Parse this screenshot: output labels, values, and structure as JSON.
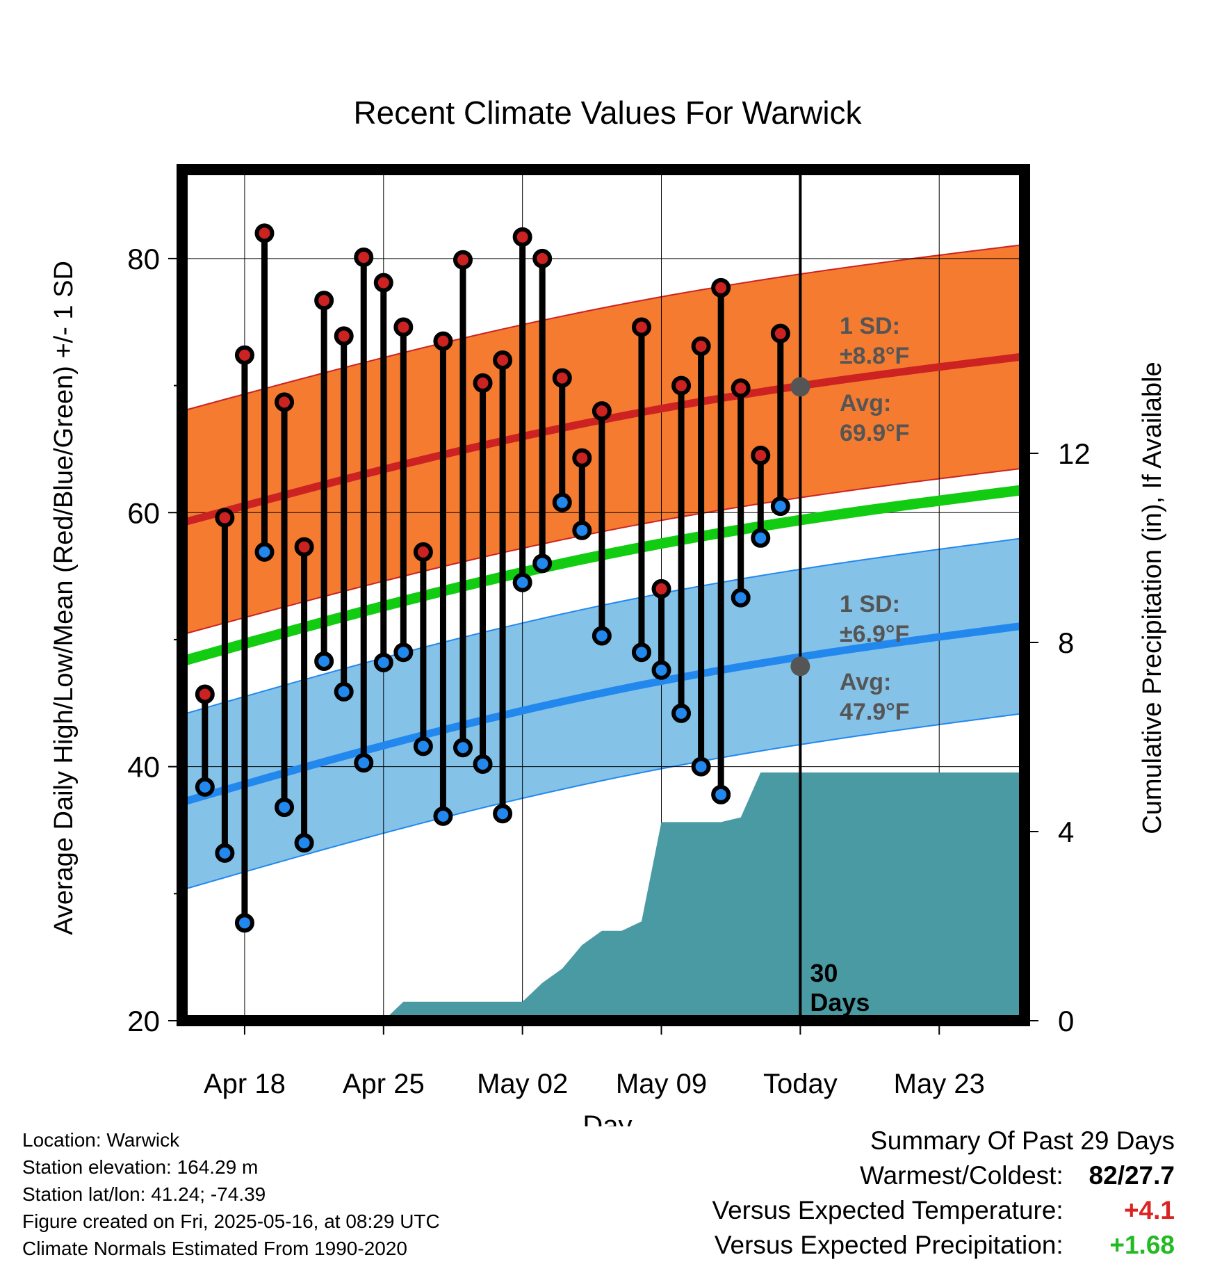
{
  "chart_data": {
    "type": "line",
    "title": "Recent Climate Values For Warwick",
    "xlabel": "Day",
    "ylabel": "Average Daily High/Low/Mean (Red/Blue/Green) +/- 1 SD",
    "y2label": "Cumulative Precipitation (in), If Available",
    "ylim": [
      20,
      87
    ],
    "y2lim": [
      0,
      18
    ],
    "yticks": [
      20,
      40,
      60,
      80
    ],
    "y2ticks": [
      0,
      4,
      8,
      12
    ],
    "xlim_days": [
      "Apr 15",
      "May 27"
    ],
    "xtick_labels": [
      "Apr 18",
      "Apr 25",
      "May 02",
      "May 09",
      "Today",
      "May 23"
    ],
    "xtick_dates": [
      "Apr 18",
      "Apr 25",
      "May 02",
      "May 09",
      "May 16",
      "May 23"
    ],
    "today": "May 16",
    "today_label": "30\nDays",
    "grid": true,
    "days": [
      "Apr 16",
      "Apr 17",
      "Apr 18",
      "Apr 19",
      "Apr 20",
      "Apr 21",
      "Apr 22",
      "Apr 23",
      "Apr 24",
      "Apr 25",
      "Apr 26",
      "Apr 27",
      "Apr 28",
      "Apr 29",
      "Apr 30",
      "May 01",
      "May 02",
      "May 03",
      "May 04",
      "May 05",
      "May 06",
      "May 07",
      "May 08",
      "May 09",
      "May 10",
      "May 11",
      "May 12",
      "May 13",
      "May 14",
      "May 15"
    ],
    "series": [
      {
        "name": "Daily High",
        "color": "#cc2222",
        "values": [
          45.7,
          59.6,
          72.4,
          82.0,
          68.7,
          57.3,
          76.7,
          73.9,
          80.1,
          78.1,
          74.6,
          56.9,
          73.5,
          79.9,
          70.2,
          72.0,
          81.7,
          80.0,
          70.6,
          64.3,
          68.0,
          null,
          74.6,
          54.0,
          70.0,
          73.1,
          77.7,
          69.8,
          64.5,
          74.1
        ]
      },
      {
        "name": "Daily Low",
        "color": "#2288ee",
        "values": [
          38.4,
          33.2,
          27.7,
          56.9,
          36.8,
          34.0,
          48.3,
          45.9,
          40.3,
          48.2,
          49.0,
          41.6,
          36.1,
          41.5,
          40.2,
          36.3,
          54.5,
          56.0,
          60.8,
          58.6,
          50.3,
          null,
          49.0,
          47.6,
          44.2,
          40.0,
          37.8,
          53.3,
          58.0,
          60.5
        ]
      },
      {
        "name": "Normal High",
        "start": 59.2,
        "end": 72.3,
        "sd": 8.8,
        "color": "#cc2222",
        "band_color": "#f47b30"
      },
      {
        "name": "Normal Low",
        "start": 37.2,
        "end": 51.1,
        "sd": 6.9,
        "color": "#2288ee",
        "band_color": "#85c2e8"
      },
      {
        "name": "Normal Mean",
        "start": 48.3,
        "end": 61.8,
        "color": "#11cc11"
      },
      {
        "name": "Cumulative Precipitation",
        "color": "#4a9aa4",
        "days": [
          "Apr 25",
          "Apr 26",
          "Apr 27",
          "May 02",
          "May 03",
          "May 04",
          "May 05",
          "May 06",
          "May 07",
          "May 08",
          "May 09",
          "May 10",
          "May 11",
          "May 12",
          "May 13",
          "May 14",
          "May 15",
          "May 27"
        ],
        "values": [
          0.0,
          0.4,
          0.4,
          0.4,
          0.8,
          1.1,
          1.6,
          1.9,
          1.9,
          2.1,
          4.2,
          4.2,
          4.2,
          4.2,
          4.3,
          5.25,
          5.25,
          5.25
        ]
      }
    ],
    "annotations": {
      "high_sd_label": "1 SD:",
      "high_sd_value": "±8.8°F",
      "high_avg_label": "Avg:",
      "high_avg_value": "69.9°F",
      "high_avg": 69.9,
      "low_sd_label": "1 SD:",
      "low_sd_value": "±6.9°F",
      "low_avg_label": "Avg:",
      "low_avg_value": "47.9°F",
      "low_avg": 47.9
    },
    "colors": {
      "high_band": "#f47b30",
      "high_line": "#cc2222",
      "low_band": "#85c2e8",
      "low_line": "#2288ee",
      "mean_line": "#11cc11",
      "precip": "#4a9aa4",
      "avg_dot": "#555555",
      "annotation_text": "#555555"
    }
  },
  "info": {
    "location": "Location: Warwick",
    "elevation": "Station elevation: 164.29 m",
    "latlon": "Station lat/lon: 41.24; -74.39",
    "created": "Figure created on Fri, 2025-05-16, at 08:29 UTC",
    "normals": "Climate Normals Estimated From 1990-2020"
  },
  "summary": {
    "title": "Summary Of Past 29 Days",
    "warmest_label": "Warmest/Coldest:",
    "warmest_value": "82/27.7",
    "temp_label": "Versus Expected Temperature:",
    "temp_value": "+4.1",
    "temp_color": "#dd2222",
    "precip_label": "Versus Expected Precipitation:",
    "precip_value": "+1.68",
    "precip_color": "#22bb22"
  }
}
